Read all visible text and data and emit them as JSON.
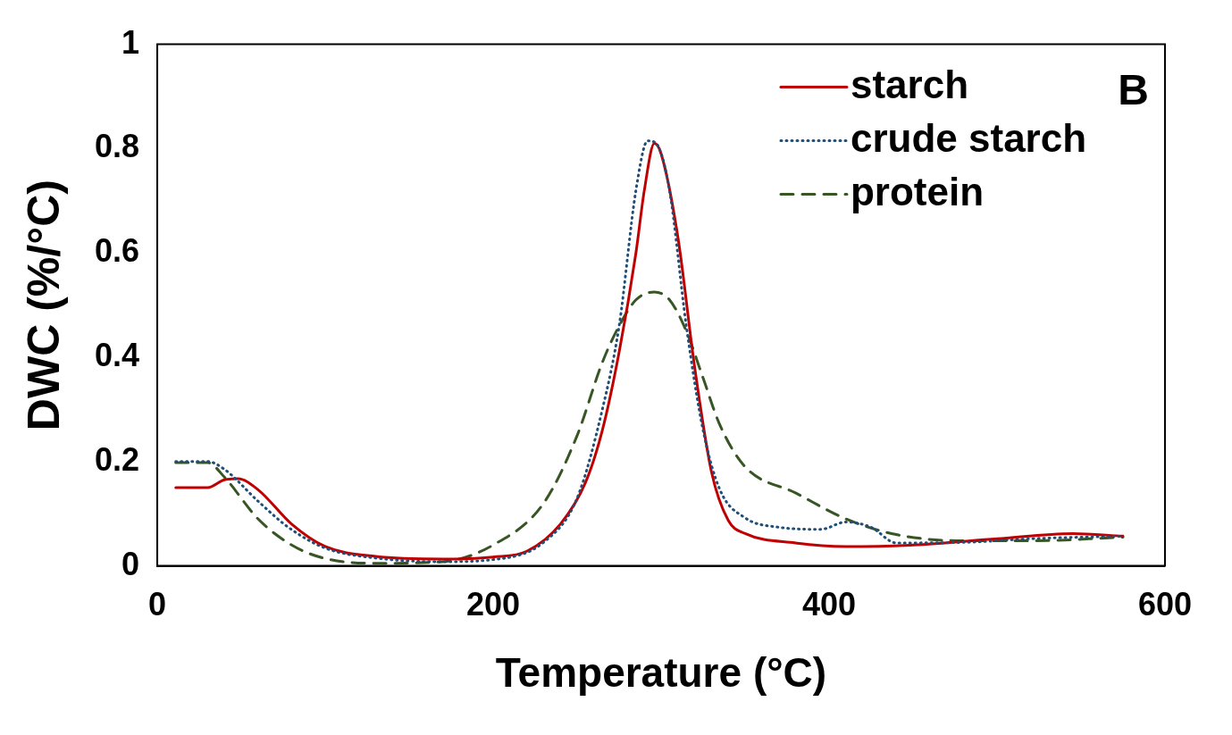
{
  "chart_data": {
    "type": "line",
    "xlabel": "Temperature (°C)",
    "ylabel": "DWC (%/°C)",
    "annotations": [
      "B"
    ],
    "xlim": [
      0,
      600
    ],
    "xticks": [
      0,
      200,
      400,
      600
    ],
    "ylim": [
      0,
      1
    ],
    "yticks": [
      0,
      0.2,
      0.4,
      0.6,
      0.8,
      1
    ],
    "grid": false,
    "legend": "top right",
    "marker": "none",
    "series": [
      {
        "name": "starch",
        "color": "#c00000",
        "line_style": "solid",
        "x": [
          11,
          30,
          40,
          48,
          60,
          80,
          100,
          130,
          170,
          200,
          220,
          240,
          255,
          265,
          275,
          285,
          290,
          296,
          300,
          310,
          320,
          330,
          340,
          350,
          380,
          410,
          450,
          500,
          545,
          575
        ],
        "values": [
          0.15,
          0.15,
          0.165,
          0.167,
          0.146,
          0.08,
          0.037,
          0.018,
          0.013,
          0.017,
          0.028,
          0.08,
          0.16,
          0.26,
          0.41,
          0.6,
          0.72,
          0.81,
          0.79,
          0.63,
          0.38,
          0.18,
          0.087,
          0.062,
          0.044,
          0.037,
          0.04,
          0.052,
          0.062,
          0.057
        ]
      },
      {
        "name": "crude starch",
        "color": "#1f4e79",
        "line_style": "dotted",
        "x": [
          11,
          30,
          40,
          60,
          78,
          100,
          130,
          170,
          200,
          230,
          250,
          265,
          275,
          285,
          292,
          297,
          305,
          315,
          325,
          335,
          350,
          370,
          395,
          410,
          425,
          440,
          480,
          520,
          575
        ],
        "values": [
          0.2,
          0.2,
          0.185,
          0.124,
          0.074,
          0.034,
          0.015,
          0.008,
          0.012,
          0.045,
          0.13,
          0.3,
          0.46,
          0.72,
          0.815,
          0.81,
          0.72,
          0.46,
          0.26,
          0.146,
          0.092,
          0.074,
          0.07,
          0.084,
          0.074,
          0.044,
          0.045,
          0.052,
          0.057
        ]
      },
      {
        "name": "protein",
        "color": "#375623",
        "line_style": "dashed",
        "x": [
          11,
          30,
          40,
          60,
          80,
          100,
          130,
          170,
          200,
          230,
          250,
          265,
          275,
          285,
          296,
          305,
          315,
          325,
          335,
          350,
          380,
          410,
          440,
          480,
          520,
          575
        ],
        "values": [
          0.198,
          0.198,
          0.17,
          0.09,
          0.04,
          0.014,
          0.005,
          0.008,
          0.04,
          0.12,
          0.25,
          0.39,
          0.46,
          0.51,
          0.525,
          0.51,
          0.45,
          0.36,
          0.27,
          0.19,
          0.14,
          0.09,
          0.06,
          0.048,
          0.048,
          0.055
        ]
      }
    ]
  }
}
